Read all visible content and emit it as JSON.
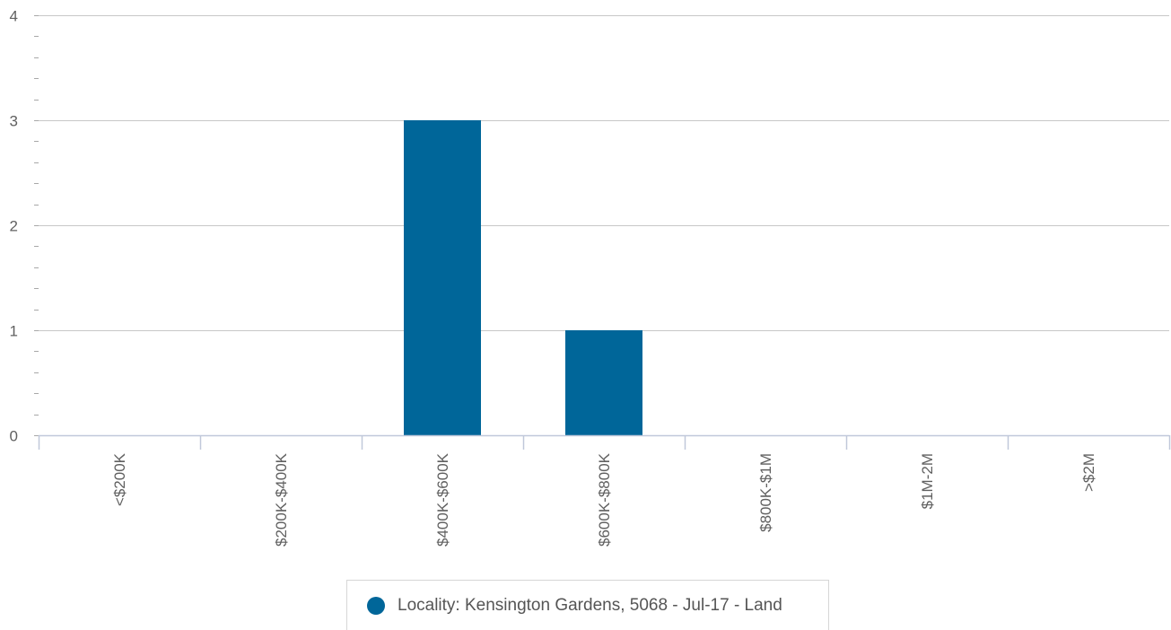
{
  "chart_data": {
    "type": "bar",
    "categories": [
      "<$200K",
      "$200K-$400K",
      "$400K-$600K",
      "$600K-$800K",
      "$800K-$1M",
      "$1M-2M",
      ">$2M"
    ],
    "series": [
      {
        "name": "Locality: Kensington Gardens, 5068 - Jul-17 - Land",
        "values": [
          0,
          0,
          3,
          1,
          0,
          0,
          0
        ]
      }
    ],
    "ylim": [
      0,
      4
    ],
    "yticks": [
      0,
      1,
      2,
      3,
      4
    ],
    "grid": true,
    "legend_position": "bottom-center",
    "bar_color": "#006699"
  },
  "legend": {
    "label": "Locality: Kensington Gardens, 5068 - Jul-17 - Land",
    "color": "#006699"
  }
}
